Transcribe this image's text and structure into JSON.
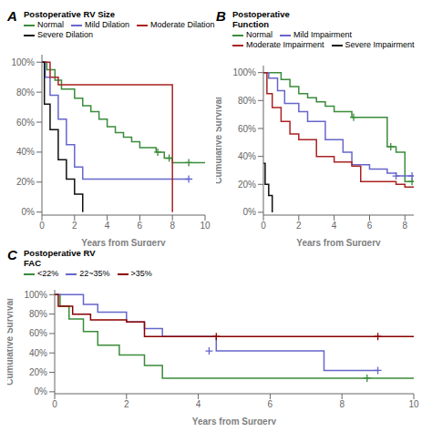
{
  "chart_data": [
    {
      "type": "line",
      "line_style": "step",
      "title": "Postoperative RV Size",
      "annotations": [
        "A"
      ],
      "xlabel": "Years from Surgery",
      "legend": "top",
      "grid": false,
      "xlim": [
        0,
        10
      ],
      "ylim": [
        -0.02,
        1.05
      ],
      "xticks": [
        0,
        2,
        4,
        6,
        8,
        10
      ],
      "yticks": [
        {
          "value": 0.0,
          "label": "0%"
        },
        {
          "value": 0.2,
          "label": "20%"
        },
        {
          "value": 0.4,
          "label": "40%"
        },
        {
          "value": 0.6,
          "label": "60%"
        },
        {
          "value": 0.8,
          "label": "80%"
        },
        {
          "value": 1.0,
          "label": "100%"
        }
      ],
      "series": [
        {
          "name": "Normal",
          "color": "#3a8c3a",
          "marker": "+",
          "x": [
            0,
            0.3,
            0.8,
            1.2,
            2.0,
            2.5,
            3.0,
            3.5,
            4.0,
            4.5,
            5.0,
            5.5,
            6.0,
            7.0,
            7.5,
            8.0,
            9.0,
            10.0
          ],
          "values": [
            1.0,
            0.95,
            0.88,
            0.82,
            0.76,
            0.71,
            0.67,
            0.62,
            0.57,
            0.53,
            0.5,
            0.47,
            0.43,
            0.4,
            0.36,
            0.33,
            0.33,
            0.33
          ],
          "censor_x": [
            7.1,
            7.8,
            9.0
          ],
          "censor_values": [
            0.4,
            0.36,
            0.33
          ]
        },
        {
          "name": "Mild Dilation",
          "color": "#6666cc",
          "marker": "+",
          "x": [
            0,
            0.2,
            0.5,
            1.0,
            1.5,
            2.0,
            2.5,
            9.0
          ],
          "values": [
            1.0,
            0.9,
            0.78,
            0.62,
            0.45,
            0.3,
            0.22,
            0.22
          ],
          "censor_x": [
            9.0
          ],
          "censor_values": [
            0.22
          ]
        },
        {
          "name": "Moderate Dilation",
          "color": "#aa2222",
          "marker": "+",
          "x": [
            0,
            0.15,
            0.5,
            1.0,
            6.0,
            8.0,
            8.0
          ],
          "values": [
            1.0,
            1.0,
            0.9,
            0.85,
            0.85,
            0.85,
            0.0
          ],
          "censor_x": [],
          "censor_values": []
        },
        {
          "name": "Severe Dilation",
          "color": "#111111",
          "marker": "+",
          "x": [
            0,
            0.15,
            0.5,
            1.0,
            1.5,
            2.0,
            2.5,
            2.5
          ],
          "values": [
            1.0,
            0.72,
            0.55,
            0.35,
            0.22,
            0.12,
            0.12,
            0.0
          ],
          "censor_x": [],
          "censor_values": []
        }
      ]
    },
    {
      "type": "line",
      "line_style": "step",
      "title": "Postoperative\nFunction",
      "annotations": [
        "B"
      ],
      "xlabel": "Years from Surgery",
      "ylabel": "Cumulative Survival",
      "legend": "top",
      "grid": false,
      "xlim": [
        0,
        8.5
      ],
      "ylim": [
        -0.02,
        1.05
      ],
      "xticks": [
        0,
        2,
        4,
        6,
        8
      ],
      "yticks": [
        {
          "value": 0.0,
          "label": "0%"
        },
        {
          "value": 0.2,
          "label": "20%"
        },
        {
          "value": 0.4,
          "label": "40%"
        },
        {
          "value": 0.6,
          "label": "60%"
        },
        {
          "value": 0.8,
          "label": "80%"
        },
        {
          "value": 1.0,
          "label": "100%"
        }
      ],
      "series": [
        {
          "name": "Normal",
          "color": "#3a8c3a",
          "marker": "+",
          "x": [
            0,
            0.5,
            1.0,
            1.5,
            2.0,
            2.5,
            3.0,
            3.5,
            4.0,
            5.0,
            5.5,
            6.0,
            7.0,
            7.5,
            8.0,
            8.5
          ],
          "values": [
            1.0,
            1.0,
            0.95,
            0.9,
            0.85,
            0.82,
            0.79,
            0.76,
            0.72,
            0.68,
            0.68,
            0.68,
            0.47,
            0.43,
            0.22,
            0.22
          ],
          "censor_x": [
            5.1,
            7.2,
            8.4
          ],
          "censor_values": [
            0.68,
            0.47,
            0.22
          ]
        },
        {
          "name": "Mild Impairment",
          "color": "#6666cc",
          "marker": "+",
          "x": [
            0,
            0.3,
            0.8,
            1.2,
            2.0,
            2.5,
            3.5,
            4.5,
            5.0,
            6.0,
            7.0,
            7.5,
            8.5
          ],
          "values": [
            1.0,
            0.96,
            0.87,
            0.78,
            0.72,
            0.65,
            0.52,
            0.43,
            0.34,
            0.31,
            0.28,
            0.26,
            0.26
          ],
          "censor_x": [
            7.5,
            8.4
          ],
          "censor_values": [
            0.26,
            0.26
          ]
        },
        {
          "name": "Moderate Impairment",
          "color": "#aa2222",
          "marker": "+",
          "x": [
            0,
            0.2,
            0.5,
            1.0,
            1.5,
            2.0,
            3.0,
            4.0,
            5.0,
            5.5,
            6.0,
            7.5,
            8.0,
            8.5
          ],
          "values": [
            1.0,
            0.85,
            0.75,
            0.65,
            0.56,
            0.52,
            0.4,
            0.36,
            0.33,
            0.22,
            0.22,
            0.2,
            0.18,
            0.18
          ],
          "censor_x": [],
          "censor_values": []
        },
        {
          "name": "Severe Impairment",
          "color": "#111111",
          "marker": "+",
          "x": [
            0,
            0.1,
            0.3,
            0.5,
            0.5
          ],
          "values": [
            0.35,
            0.2,
            0.12,
            0.0,
            0.0
          ],
          "censor_x": [],
          "censor_values": []
        }
      ]
    },
    {
      "type": "line",
      "line_style": "step",
      "title": "Postoperative RV\nFAC",
      "annotations": [
        "C"
      ],
      "xlabel": "Years from Surgery",
      "ylabel": "Cumulative Survival",
      "legend": "top",
      "grid": false,
      "xlim": [
        0,
        10
      ],
      "ylim": [
        -0.02,
        1.05
      ],
      "xticks": [
        0,
        2,
        4,
        6,
        8,
        10
      ],
      "yticks": [
        {
          "value": 0.0,
          "label": "0%"
        },
        {
          "value": 0.2,
          "label": "20%"
        },
        {
          "value": 0.4,
          "label": "40%"
        },
        {
          "value": 0.6,
          "label": "60%"
        },
        {
          "value": 0.8,
          "label": "80%"
        },
        {
          "value": 1.0,
          "label": "100%"
        }
      ],
      "series": [
        {
          "name": "<22%",
          "color": "#3a8c3a",
          "marker": "+",
          "x": [
            0,
            0.15,
            0.4,
            0.8,
            1.2,
            1.8,
            2.5,
            3.0,
            9.0,
            10.0
          ],
          "values": [
            1.0,
            0.88,
            0.75,
            0.62,
            0.48,
            0.38,
            0.27,
            0.14,
            0.14,
            0.14
          ],
          "censor_x": [
            8.7
          ],
          "censor_values": [
            0.14
          ]
        },
        {
          "name": "22~35%",
          "color": "#6666cc",
          "marker": "+",
          "x": [
            0,
            0.3,
            0.8,
            1.2,
            2.0,
            2.5,
            3.0,
            4.5,
            7.2,
            7.5,
            9.0
          ],
          "values": [
            1.0,
            1.0,
            0.9,
            0.82,
            0.72,
            0.65,
            0.57,
            0.42,
            0.42,
            0.22,
            0.22
          ],
          "censor_x": [
            4.3,
            9.0
          ],
          "censor_values": [
            0.42,
            0.22
          ]
        },
        {
          "name": ">35%",
          "color": "#8b0000",
          "marker": "+",
          "x": [
            0,
            0.1,
            0.5,
            1.0,
            2.0,
            2.5,
            3.0,
            9.0,
            10.0
          ],
          "values": [
            1.0,
            0.88,
            0.8,
            0.74,
            0.72,
            0.57,
            0.57,
            0.57,
            0.57
          ],
          "censor_x": [
            4.5,
            9.0
          ],
          "censor_values": [
            0.57,
            0.57
          ]
        }
      ]
    }
  ]
}
